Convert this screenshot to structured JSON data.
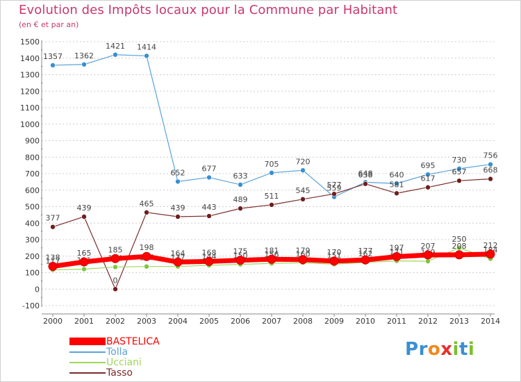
{
  "header": {
    "title": "Evolution des Impôts locaux pour la Commune par Habitant",
    "subtitle": "(en € et par an)"
  },
  "colors": {
    "title": "#c8386e",
    "grid": "#cccccc",
    "axis": "#888888",
    "tick_marks": "#c8386e"
  },
  "logo": {
    "letters": [
      {
        "char": "P",
        "color": "#3a8fd0"
      },
      {
        "char": "r",
        "color": "#3a8fd0"
      },
      {
        "char": "o",
        "color": "#f08a1c"
      },
      {
        "char": "x",
        "color": "#e8302c"
      },
      {
        "char": "i",
        "color": "#7cbf2c"
      },
      {
        "char": "t",
        "color": "#3a8fd0"
      },
      {
        "char": "i",
        "color": "#7cbf2c"
      }
    ]
  },
  "chart_data": {
    "type": "line",
    "title": "Evolution des Impôts locaux pour la Commune par Habitant",
    "subtitle": "(en € et par an)",
    "xlabel": "",
    "ylabel": "",
    "categories": [
      "2000",
      "2001",
      "2002",
      "2003",
      "2004",
      "2005",
      "2006",
      "2007",
      "2008",
      "2009",
      "2010",
      "2011",
      "2012",
      "2013",
      "2014"
    ],
    "ylim": [
      -100,
      1500
    ],
    "yticks": [
      -100,
      0,
      100,
      200,
      300,
      400,
      500,
      600,
      700,
      800,
      900,
      1000,
      1100,
      1200,
      1300,
      1400,
      1500
    ],
    "grid": true,
    "legend_position": "bottom-left",
    "series": [
      {
        "name": "BASTELICA",
        "color": "#ff0000",
        "marker": "#ff0000",
        "width": 7,
        "values": [
          138,
          165,
          185,
          198,
          164,
          168,
          175,
          181,
          179,
          170,
          177,
          197,
          207,
          208,
          212
        ],
        "labels": [
          "138",
          "165",
          "185",
          "198",
          "164",
          "168",
          "175",
          "181",
          "179",
          "170",
          "177",
          "197",
          "207",
          "208",
          "212"
        ]
      },
      {
        "name": "Tolla",
        "color": "#5aa2d8",
        "marker": "#3a8fd0",
        "width": 1.2,
        "values": [
          1357,
          1362,
          1421,
          1414,
          652,
          677,
          633,
          705,
          720,
          559,
          648,
          640,
          695,
          730,
          756
        ],
        "labels": [
          "1357",
          "1362",
          "1421",
          "1414",
          "652",
          "677",
          "633",
          "705",
          "720",
          "559",
          "648",
          "640",
          "695",
          "730",
          "756"
        ]
      },
      {
        "name": "Ucciani",
        "color": "#9ed65a",
        "marker": "#7cc63c",
        "width": 1.2,
        "values": [
          117,
          121,
          134,
          137,
          137,
          144,
          150,
          156,
          160,
          151,
          162,
          171,
          169,
          250,
          184
        ],
        "labels": [
          "117",
          "121",
          "134",
          "137",
          "137",
          "144",
          "150",
          "156",
          "160",
          "151",
          "162",
          "171",
          "169",
          "250",
          "184"
        ]
      },
      {
        "name": "Tasso",
        "color": "#7a2a2a",
        "marker": "#6e1e1e",
        "width": 1.2,
        "values": [
          377,
          439,
          0,
          465,
          439,
          443,
          489,
          511,
          545,
          577,
          638,
          581,
          617,
          657,
          668
        ],
        "labels": [
          "377",
          "439",
          "0",
          "465",
          "439",
          "443",
          "489",
          "511",
          "545",
          "577",
          "638",
          "581",
          "617",
          "657",
          "668"
        ]
      }
    ]
  }
}
